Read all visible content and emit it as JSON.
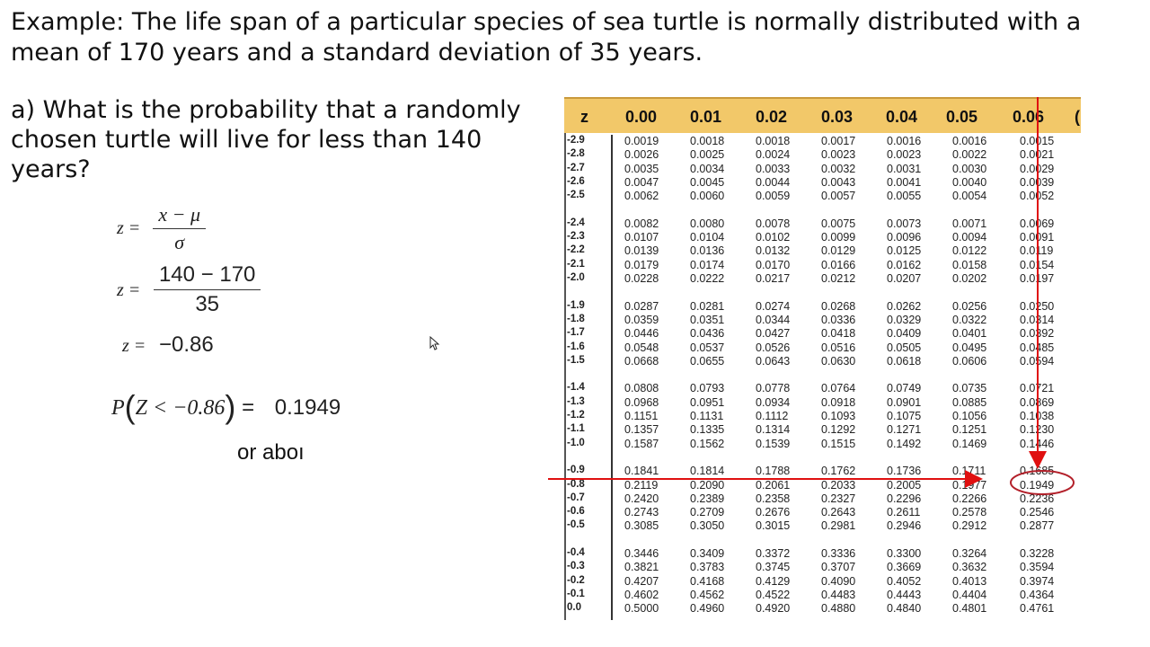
{
  "intro": {
    "text": "Example: The life span of a particular species of sea turtle is normally distributed with a mean of 170 years and a standard deviation of 35 years."
  },
  "question": {
    "text": "a) What is the probability that a randomly chosen turtle will live for less than 140 years?"
  },
  "work": {
    "eq1": {
      "lhs": "z =",
      "num": "x − μ",
      "den": "σ"
    },
    "eq2": {
      "lhs": "z =",
      "num": "140 − 170",
      "den": "35"
    },
    "eq3": {
      "lhs": "z =",
      "rhs": "−0.86"
    },
    "eq4": {
      "lhs_p": "P",
      "inner": "Z < −0.86",
      "eq": "=",
      "answer": "0.1949"
    },
    "partial": "or aboı"
  },
  "table": {
    "z_header": "z",
    "col_headers": [
      "0.00",
      "0.01",
      "0.02",
      "0.03",
      "0.04",
      "0.05",
      "0.06",
      "("
    ],
    "rows": [
      [
        "-2.9",
        "0.0019",
        "0.0018",
        "0.0018",
        "0.0017",
        "0.0016",
        "0.0016",
        "0.0015"
      ],
      [
        "-2.8",
        "0.0026",
        "0.0025",
        "0.0024",
        "0.0023",
        "0.0023",
        "0.0022",
        "0.0021"
      ],
      [
        "-2.7",
        "0.0035",
        "0.0034",
        "0.0033",
        "0.0032",
        "0.0031",
        "0.0030",
        "0.0029"
      ],
      [
        "-2.6",
        "0.0047",
        "0.0045",
        "0.0044",
        "0.0043",
        "0.0041",
        "0.0040",
        "0.0039"
      ],
      [
        "-2.5",
        "0.0062",
        "0.0060",
        "0.0059",
        "0.0057",
        "0.0055",
        "0.0054",
        "0.0052"
      ],
      [
        "-2.4",
        "0.0082",
        "0.0080",
        "0.0078",
        "0.0075",
        "0.0073",
        "0.0071",
        "0.0069"
      ],
      [
        "-2.3",
        "0.0107",
        "0.0104",
        "0.0102",
        "0.0099",
        "0.0096",
        "0.0094",
        "0.0091"
      ],
      [
        "-2.2",
        "0.0139",
        "0.0136",
        "0.0132",
        "0.0129",
        "0.0125",
        "0.0122",
        "0.0119"
      ],
      [
        "-2.1",
        "0.0179",
        "0.0174",
        "0.0170",
        "0.0166",
        "0.0162",
        "0.0158",
        "0.0154"
      ],
      [
        "-2.0",
        "0.0228",
        "0.0222",
        "0.0217",
        "0.0212",
        "0.0207",
        "0.0202",
        "0.0197"
      ],
      [
        "-1.9",
        "0.0287",
        "0.0281",
        "0.0274",
        "0.0268",
        "0.0262",
        "0.0256",
        "0.0250"
      ],
      [
        "-1.8",
        "0.0359",
        "0.0351",
        "0.0344",
        "0.0336",
        "0.0329",
        "0.0322",
        "0.0314"
      ],
      [
        "-1.7",
        "0.0446",
        "0.0436",
        "0.0427",
        "0.0418",
        "0.0409",
        "0.0401",
        "0.0392"
      ],
      [
        "-1.6",
        "0.0548",
        "0.0537",
        "0.0526",
        "0.0516",
        "0.0505",
        "0.0495",
        "0.0485"
      ],
      [
        "-1.5",
        "0.0668",
        "0.0655",
        "0.0643",
        "0.0630",
        "0.0618",
        "0.0606",
        "0.0594"
      ],
      [
        "-1.4",
        "0.0808",
        "0.0793",
        "0.0778",
        "0.0764",
        "0.0749",
        "0.0735",
        "0.0721"
      ],
      [
        "-1.3",
        "0.0968",
        "0.0951",
        "0.0934",
        "0.0918",
        "0.0901",
        "0.0885",
        "0.0869"
      ],
      [
        "-1.2",
        "0.1151",
        "0.1131",
        "0.1112",
        "0.1093",
        "0.1075",
        "0.1056",
        "0.1038"
      ],
      [
        "-1.1",
        "0.1357",
        "0.1335",
        "0.1314",
        "0.1292",
        "0.1271",
        "0.1251",
        "0.1230"
      ],
      [
        "-1.0",
        "0.1587",
        "0.1562",
        "0.1539",
        "0.1515",
        "0.1492",
        "0.1469",
        "0.1446"
      ],
      [
        "-0.9",
        "0.1841",
        "0.1814",
        "0.1788",
        "0.1762",
        "0.1736",
        "0.1711",
        "0.1685"
      ],
      [
        "-0.8",
        "0.2119",
        "0.2090",
        "0.2061",
        "0.2033",
        "0.2005",
        "0.1977",
        "0.1949"
      ],
      [
        "-0.7",
        "0.2420",
        "0.2389",
        "0.2358",
        "0.2327",
        "0.2296",
        "0.2266",
        "0.2236"
      ],
      [
        "-0.6",
        "0.2743",
        "0.2709",
        "0.2676",
        "0.2643",
        "0.2611",
        "0.2578",
        "0.2546"
      ],
      [
        "-0.5",
        "0.3085",
        "0.3050",
        "0.3015",
        "0.2981",
        "0.2946",
        "0.2912",
        "0.2877"
      ],
      [
        "-0.4",
        "0.3446",
        "0.3409",
        "0.3372",
        "0.3336",
        "0.3300",
        "0.3264",
        "0.3228"
      ],
      [
        "-0.3",
        "0.3821",
        "0.3783",
        "0.3745",
        "0.3707",
        "0.3669",
        "0.3632",
        "0.3594"
      ],
      [
        "-0.2",
        "0.4207",
        "0.4168",
        "0.4129",
        "0.4090",
        "0.4052",
        "0.4013",
        "0.3974"
      ],
      [
        "-0.1",
        "0.4602",
        "0.4562",
        "0.4522",
        "0.4483",
        "0.4443",
        "0.4404",
        "0.4364"
      ],
      [
        "0.0",
        "0.5000",
        "0.4960",
        "0.4920",
        "0.4880",
        "0.4840",
        "0.4801",
        "0.4761"
      ]
    ]
  },
  "colors": {
    "header_bg": "#f2c869",
    "arrow": "#e01010",
    "highlight_circle": "#b3202a"
  }
}
